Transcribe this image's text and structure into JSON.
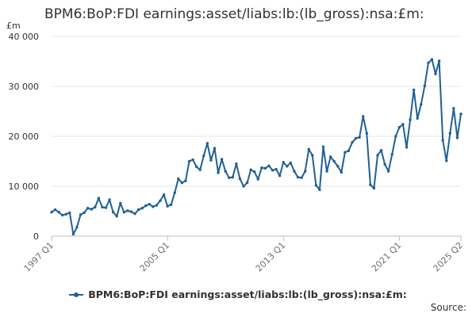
{
  "chart_data": {
    "type": "line",
    "title": "BPM6:BoP:FDI earnings:asset/liabs:lb:(lb_gross):nsa:£m:",
    "ylabel": "£m",
    "xlabel": "",
    "ylim": [
      0,
      40000
    ],
    "y_ticks": [
      0,
      10000,
      20000,
      30000,
      40000
    ],
    "y_tick_labels": [
      "0",
      "10 000",
      "20 000",
      "30 000",
      "40 000"
    ],
    "x_tick_indices": [
      0,
      32,
      64,
      96,
      113
    ],
    "x_tick_labels": [
      "1997 Q1",
      "2005 Q1",
      "2013 Q1",
      "2021 Q1",
      "2025 Q2"
    ],
    "grid": true,
    "legend": "bottom",
    "source_label": "Source:",
    "series": [
      {
        "name": "BPM6:BoP:FDI earnings:asset/liabs:lb:(lb_gross):nsa:£m:",
        "color": "#206095",
        "values": [
          4800,
          5300,
          4800,
          4200,
          4400,
          4700,
          400,
          1800,
          4300,
          4700,
          5600,
          5400,
          5800,
          7600,
          5800,
          5700,
          7300,
          4800,
          4000,
          6600,
          4800,
          5100,
          4900,
          4500,
          5300,
          5600,
          6100,
          6400,
          5900,
          6200,
          7100,
          8300,
          6000,
          6300,
          8700,
          11500,
          10700,
          11100,
          15000,
          15300,
          13900,
          13300,
          16100,
          18600,
          15200,
          17600,
          12700,
          15400,
          13000,
          11700,
          11800,
          14500,
          11500,
          10000,
          10700,
          13300,
          12900,
          11400,
          13700,
          13600,
          14100,
          13200,
          13400,
          12100,
          14800,
          14000,
          14700,
          13000,
          11800,
          11700,
          13000,
          17400,
          16200,
          10200,
          9300,
          17900,
          13000,
          15900,
          15000,
          14000,
          12800,
          16800,
          17100,
          18800,
          19600,
          19800,
          24000,
          20600,
          10300,
          9600,
          16200,
          17200,
          14400,
          13000,
          16400,
          20000,
          21800,
          22400,
          17800,
          23300,
          29300,
          23600,
          26400,
          30100,
          34700,
          35400,
          32500,
          35100,
          19200,
          15100,
          20600,
          25600,
          19700,
          24500
        ]
      }
    ]
  }
}
